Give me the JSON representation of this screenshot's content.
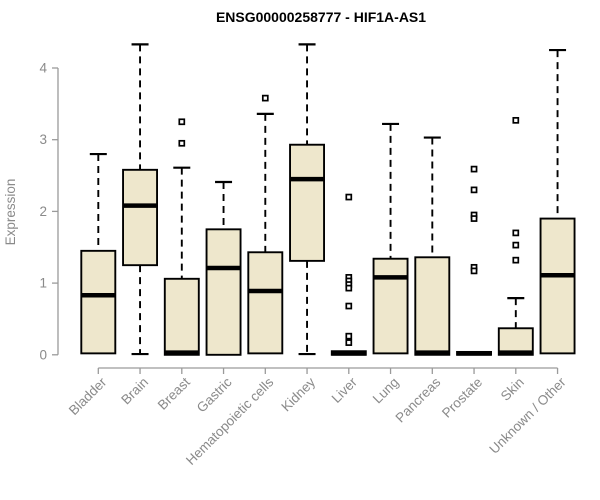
{
  "chart_data": {
    "type": "boxplot",
    "title": "ENSG00000258777 - HIF1A-AS1",
    "ylabel": "Expression",
    "xlabel": "",
    "ylim": [
      0,
      4
    ],
    "yticks": [
      0,
      1,
      2,
      3,
      4
    ],
    "grid": false,
    "legend": "none",
    "box_fill": "#EEE7CC",
    "box_border": "#000000",
    "outlier_fill": "#FFFFFF",
    "outlier_marker": "open-square",
    "axis_color": "#9A9A9A",
    "label_color": "#8A8A8A",
    "categories": [
      "Bladder",
      "Brain",
      "Breast",
      "Gastric",
      "Hematopoietic cells",
      "Kidney",
      "Liver",
      "Lung",
      "Pancreas",
      "Prostate",
      "Skin",
      "Unknown / Other"
    ],
    "series": [
      {
        "name": "Bladder",
        "whisker_low": 0.02,
        "q1": 0.02,
        "median": 0.83,
        "q3": 1.45,
        "whisker_high": 2.8,
        "outliers": []
      },
      {
        "name": "Brain",
        "whisker_low": 0.01,
        "q1": 1.25,
        "median": 2.08,
        "q3": 2.58,
        "whisker_high": 4.33,
        "outliers": []
      },
      {
        "name": "Breast",
        "whisker_low": 0.0,
        "q1": 0.0,
        "median": 0.03,
        "q3": 1.06,
        "whisker_high": 2.61,
        "outliers": [
          3.25,
          2.95
        ]
      },
      {
        "name": "Gastric",
        "whisker_low": 0.0,
        "q1": 0.0,
        "median": 1.21,
        "q3": 1.75,
        "whisker_high": 2.41,
        "outliers": []
      },
      {
        "name": "Hematopoietic cells",
        "whisker_low": 0.02,
        "q1": 0.02,
        "median": 0.89,
        "q3": 1.43,
        "whisker_high": 3.36,
        "outliers": [
          3.58
        ]
      },
      {
        "name": "Kidney",
        "whisker_low": 0.01,
        "q1": 1.31,
        "median": 2.45,
        "q3": 2.93,
        "whisker_high": 4.33,
        "outliers": []
      },
      {
        "name": "Liver",
        "whisker_low": 0.0,
        "q1": 0.0,
        "median": 0.02,
        "q3": 0.05,
        "whisker_high": 0.05,
        "outliers": [
          2.2,
          1.08,
          1.03,
          0.98,
          0.93,
          0.68,
          0.26,
          0.17
        ]
      },
      {
        "name": "Lung",
        "whisker_low": 0.02,
        "q1": 0.02,
        "median": 1.08,
        "q3": 1.34,
        "whisker_high": 3.22,
        "outliers": []
      },
      {
        "name": "Pancreas",
        "whisker_low": 0.0,
        "q1": 0.0,
        "median": 0.03,
        "q3": 1.36,
        "whisker_high": 3.03,
        "outliers": []
      },
      {
        "name": "Prostate",
        "whisker_low": 0.0,
        "q1": 0.0,
        "median": 0.02,
        "q3": 0.04,
        "whisker_high": 0.04,
        "outliers": [
          2.59,
          2.3,
          1.95,
          1.9,
          1.22,
          1.17
        ]
      },
      {
        "name": "Skin",
        "whisker_low": 0.0,
        "q1": 0.0,
        "median": 0.03,
        "q3": 0.37,
        "whisker_high": 0.79,
        "outliers": [
          3.27,
          1.7,
          1.53,
          1.32
        ]
      },
      {
        "name": "Unknown / Other",
        "whisker_low": 0.02,
        "q1": 0.02,
        "median": 1.11,
        "q3": 1.9,
        "whisker_high": 4.25,
        "outliers": []
      }
    ]
  }
}
